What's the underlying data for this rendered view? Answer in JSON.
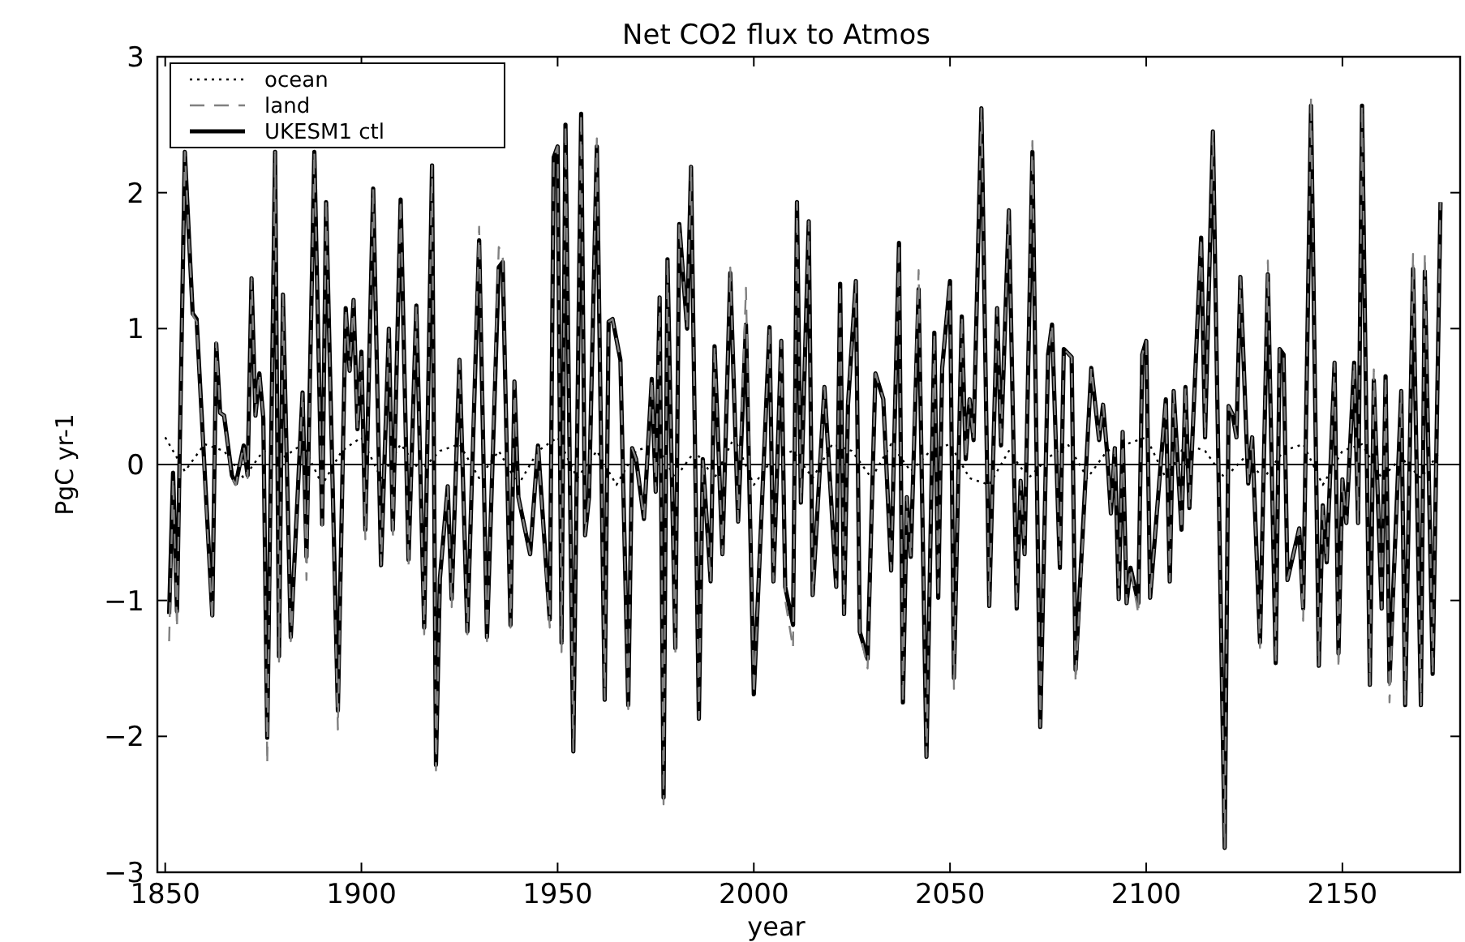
{
  "chart_data": {
    "type": "line",
    "title": "Net CO2 flux to Atmos",
    "xlabel": "year",
    "ylabel": "PgC yr-1",
    "xlim": [
      1848,
      2180
    ],
    "ylim": [
      -3,
      3
    ],
    "xticks": [
      1850,
      1900,
      1950,
      2000,
      2050,
      2100,
      2150
    ],
    "yticks": [
      -3,
      -2,
      -1,
      0,
      1,
      2,
      3
    ],
    "grid": false,
    "legend": "top left",
    "ref_lines": [
      {
        "axis": "y",
        "value": 0,
        "color": "#000000",
        "line_style": "solid"
      }
    ],
    "series": [
      {
        "name": "ocean",
        "color": "#000000",
        "line_style": "dotted",
        "x": [
          1850,
          1855,
          1860,
          1865,
          1870,
          1875,
          1880,
          1885,
          1890,
          1895,
          1900,
          1905,
          1910,
          1915,
          1920,
          1925,
          1930,
          1935,
          1940,
          1945,
          1950,
          1955,
          1960,
          1965,
          1970,
          1975,
          1980,
          1985,
          1990,
          1995,
          2000,
          2005,
          2010,
          2015,
          2020,
          2025,
          2030,
          2035,
          2040,
          2045,
          2050,
          2055,
          2060,
          2065,
          2070,
          2075,
          2080,
          2085,
          2090,
          2095,
          2100,
          2105,
          2110,
          2115,
          2120,
          2125,
          2130,
          2135,
          2140,
          2145,
          2150,
          2155,
          2160,
          2165,
          2170,
          2175
        ],
        "values": [
          0.2,
          -0.05,
          0.15,
          0.1,
          -0.1,
          0.1,
          0.05,
          0.15,
          -0.15,
          0.1,
          0.2,
          -0.1,
          0.15,
          -0.05,
          0.1,
          0.15,
          -0.1,
          0.1,
          -0.15,
          0.1,
          0.2,
          -0.1,
          0.1,
          -0.15,
          0.1,
          0.15,
          -0.1,
          0.1,
          -0.1,
          0.2,
          -0.15,
          0.05,
          0.1,
          -0.1,
          0.15,
          0.1,
          -0.1,
          0.15,
          -0.05,
          0.1,
          0.15,
          -0.1,
          -0.15,
          0.1,
          -0.1,
          0.05,
          0.15,
          -0.1,
          0.1,
          0.15,
          0.2,
          -0.1,
          0.15,
          0.1,
          -0.1,
          0.05,
          -0.1,
          0.1,
          0.15,
          -0.15,
          0.1,
          0.15,
          -0.1,
          0.05,
          -0.1,
          0.1
        ]
      },
      {
        "name": "land",
        "color": "#808080",
        "line_style": "dashed",
        "x": [
          1851,
          1852,
          1853,
          1855,
          1857,
          1858,
          1862,
          1863,
          1864,
          1865,
          1867,
          1868,
          1870,
          1871,
          1872,
          1873,
          1874,
          1875,
          1876,
          1878,
          1879,
          1880,
          1882,
          1885,
          1886,
          1888,
          1890,
          1891,
          1894,
          1896,
          1897,
          1898,
          1899,
          1900,
          1901,
          1903,
          1905,
          1907,
          1908,
          1910,
          1912,
          1914,
          1916,
          1918,
          1919,
          1920,
          1922,
          1923,
          1925,
          1927,
          1930,
          1932,
          1935,
          1936,
          1938,
          1939,
          1940,
          1943,
          1945,
          1948,
          1949,
          1950,
          1951,
          1952,
          1954,
          1956,
          1957,
          1958,
          1960,
          1962,
          1963,
          1964,
          1966,
          1968,
          1969,
          1970,
          1972,
          1974,
          1975,
          1976,
          1977,
          1978,
          1980,
          1981,
          1983,
          1984,
          1986,
          1987,
          1989,
          1990,
          1992,
          1994,
          1996,
          1998,
          2000,
          2004,
          2005,
          2007,
          2008,
          2010,
          2011,
          2012,
          2014,
          2015,
          2018,
          2021,
          2022,
          2023,
          2024,
          2026,
          2027,
          2029,
          2031,
          2033,
          2035,
          2037,
          2038,
          2039,
          2040,
          2042,
          2044,
          2046,
          2047,
          2048,
          2050,
          2051,
          2053,
          2054,
          2055,
          2056,
          2058,
          2060,
          2062,
          2063,
          2065,
          2067,
          2068,
          2069,
          2071,
          2073,
          2075,
          2076,
          2078,
          2079,
          2081,
          2082,
          2086,
          2088,
          2089,
          2090,
          2091,
          2092,
          2093,
          2094,
          2095,
          2096,
          2098,
          2099,
          2100,
          2101,
          2105,
          2106,
          2107,
          2109,
          2110,
          2111,
          2114,
          2115,
          2117,
          2120,
          2121,
          2122,
          2123,
          2124,
          2126,
          2127,
          2129,
          2131,
          2133,
          2134,
          2135,
          2136,
          2139,
          2140,
          2142,
          2144,
          2145,
          2146,
          2148,
          2149,
          2150,
          2151,
          2153,
          2154,
          2155,
          2157,
          2158,
          2160,
          2161,
          2162,
          2165,
          2166,
          2168,
          2170,
          2171,
          2173,
          2175
        ],
        "values": [
          -1.3,
          -0.1,
          -1.2,
          2.3,
          1.1,
          1.05,
          -1.15,
          0.9,
          0.38,
          0.36,
          -0.1,
          -0.15,
          0.14,
          -0.1,
          1.37,
          0.36,
          0.67,
          0.34,
          -2.2,
          2.3,
          -1.45,
          1.25,
          -1.3,
          0.53,
          -0.85,
          2.3,
          -0.45,
          1.95,
          -1.95,
          1.15,
          0.69,
          1.21,
          0.26,
          0.83,
          -0.55,
          2.03,
          -0.74,
          1.0,
          -0.55,
          1.95,
          -0.75,
          1.17,
          -1.25,
          2.2,
          -2.25,
          -0.84,
          -0.16,
          -1.05,
          0.77,
          -1.25,
          1.75,
          -1.3,
          1.6,
          1.55,
          -1.2,
          0.61,
          -0.24,
          -0.66,
          0.14,
          -1.2,
          2.26,
          2.34,
          -1.38,
          2.5,
          -2.11,
          2.58,
          -0.52,
          -0.24,
          2.4,
          -1.73,
          1.05,
          1.07,
          0.77,
          -1.8,
          0.12,
          0.04,
          -0.4,
          0.63,
          -0.2,
          1.23,
          -2.5,
          1.51,
          -1.4,
          1.77,
          1.0,
          2.19,
          -1.87,
          0.04,
          -0.86,
          0.87,
          -0.66,
          1.45,
          -0.42,
          1.3,
          -1.69,
          1.01,
          -0.86,
          0.91,
          -1.0,
          -1.35,
          1.93,
          -0.28,
          1.79,
          -0.96,
          0.57,
          -0.9,
          1.33,
          -1.1,
          0.44,
          1.35,
          -1.23,
          -1.5,
          0.67,
          0.48,
          -0.78,
          1.63,
          -1.75,
          -0.24,
          -0.68,
          1.43,
          -2.15,
          0.97,
          -0.98,
          0.71,
          1.35,
          -1.65,
          1.09,
          0.04,
          0.48,
          0.18,
          2.62,
          -1.04,
          1.15,
          0.14,
          1.87,
          -1.06,
          -0.12,
          -0.66,
          2.38,
          -1.93,
          0.81,
          1.03,
          -0.76,
          0.85,
          0.79,
          -1.6,
          0.71,
          0.18,
          0.44,
          0.1,
          -0.36,
          0.12,
          -0.99,
          0.24,
          -1.02,
          -0.76,
          -1.1,
          0.81,
          0.91,
          -0.98,
          0.48,
          -0.86,
          0.54,
          -0.48,
          0.57,
          -0.32,
          1.67,
          0.2,
          2.45,
          -2.82,
          0.43,
          0.37,
          0.2,
          1.38,
          -0.14,
          0.2,
          -1.35,
          1.5,
          -1.46,
          0.85,
          0.81,
          -0.85,
          -0.47,
          -1.15,
          2.7,
          -1.48,
          -0.3,
          -0.72,
          0.75,
          -1.5,
          -0.11,
          -0.43,
          0.75,
          -0.43,
          2.64,
          -1.62,
          0.7,
          -1.06,
          0.65,
          -1.75,
          0.54,
          -1.77,
          1.55,
          -1.77,
          1.55,
          -1.54,
          1.93
        ]
      },
      {
        "name": "UKESM1 ctl",
        "color": "#000000",
        "line_style": "solid",
        "x": [
          1851,
          1852,
          1853,
          1855,
          1857,
          1858,
          1862,
          1863,
          1864,
          1865,
          1867,
          1868,
          1870,
          1871,
          1872,
          1873,
          1874,
          1875,
          1876,
          1878,
          1879,
          1880,
          1882,
          1885,
          1886,
          1888,
          1890,
          1891,
          1894,
          1896,
          1897,
          1898,
          1899,
          1900,
          1901,
          1903,
          1905,
          1907,
          1908,
          1910,
          1912,
          1914,
          1916,
          1918,
          1919,
          1920,
          1922,
          1923,
          1925,
          1927,
          1930,
          1932,
          1935,
          1936,
          1938,
          1939,
          1940,
          1943,
          1945,
          1948,
          1949,
          1950,
          1951,
          1952,
          1954,
          1956,
          1957,
          1958,
          1960,
          1962,
          1963,
          1964,
          1966,
          1968,
          1969,
          1970,
          1972,
          1974,
          1975,
          1976,
          1977,
          1978,
          1980,
          1981,
          1983,
          1984,
          1986,
          1987,
          1989,
          1990,
          1992,
          1994,
          1996,
          1998,
          2000,
          2004,
          2005,
          2007,
          2008,
          2010,
          2011,
          2012,
          2014,
          2015,
          2018,
          2021,
          2022,
          2023,
          2024,
          2026,
          2027,
          2029,
          2031,
          2033,
          2035,
          2037,
          2038,
          2039,
          2040,
          2042,
          2044,
          2046,
          2047,
          2048,
          2050,
          2051,
          2053,
          2054,
          2055,
          2056,
          2058,
          2060,
          2062,
          2063,
          2065,
          2067,
          2068,
          2069,
          2071,
          2073,
          2075,
          2076,
          2078,
          2079,
          2081,
          2082,
          2086,
          2088,
          2089,
          2090,
          2091,
          2092,
          2093,
          2094,
          2095,
          2096,
          2098,
          2099,
          2100,
          2101,
          2105,
          2106,
          2107,
          2109,
          2110,
          2111,
          2114,
          2115,
          2117,
          2120,
          2121,
          2122,
          2123,
          2124,
          2126,
          2127,
          2129,
          2131,
          2133,
          2134,
          2135,
          2136,
          2139,
          2140,
          2142,
          2144,
          2145,
          2146,
          2148,
          2149,
          2150,
          2151,
          2153,
          2154,
          2155,
          2157,
          2158,
          2160,
          2161,
          2162,
          2165,
          2166,
          2168,
          2170,
          2171,
          2173,
          2175
        ],
        "values": [
          -1.1,
          -0.06,
          -1.08,
          2.3,
          1.11,
          1.07,
          -1.11,
          0.89,
          0.38,
          0.36,
          -0.08,
          -0.14,
          0.14,
          -0.08,
          1.37,
          0.36,
          0.67,
          0.34,
          -2.01,
          2.3,
          -1.41,
          1.25,
          -1.27,
          0.53,
          -0.68,
          2.3,
          -0.44,
          1.93,
          -1.81,
          1.15,
          0.69,
          1.21,
          0.26,
          0.83,
          -0.48,
          2.03,
          -0.74,
          1.0,
          -0.48,
          1.95,
          -0.7,
          1.17,
          -1.2,
          2.2,
          -2.21,
          -0.84,
          -0.16,
          -0.99,
          0.77,
          -1.23,
          1.65,
          -1.27,
          1.45,
          1.49,
          -1.18,
          0.61,
          -0.24,
          -0.66,
          0.14,
          -1.14,
          2.26,
          2.34,
          -1.31,
          2.5,
          -2.11,
          2.58,
          -0.52,
          -0.24,
          2.34,
          -1.73,
          1.05,
          1.07,
          0.77,
          -1.77,
          0.12,
          0.04,
          -0.4,
          0.63,
          -0.2,
          1.23,
          -2.45,
          1.51,
          -1.35,
          1.77,
          1.0,
          2.19,
          -1.87,
          0.04,
          -0.86,
          0.87,
          -0.66,
          1.41,
          -0.42,
          1.03,
          -1.69,
          1.01,
          -0.86,
          0.91,
          -0.9,
          -1.18,
          1.93,
          -0.28,
          1.79,
          -0.96,
          0.57,
          -0.9,
          1.33,
          -1.1,
          0.44,
          1.35,
          -1.23,
          -1.43,
          0.67,
          0.48,
          -0.78,
          1.63,
          -1.75,
          -0.24,
          -0.68,
          1.29,
          -2.15,
          0.97,
          -0.98,
          0.71,
          1.35,
          -1.57,
          1.09,
          0.04,
          0.48,
          0.18,
          2.62,
          -1.04,
          1.15,
          0.14,
          1.87,
          -1.06,
          -0.12,
          -0.66,
          2.3,
          -1.93,
          0.81,
          1.03,
          -0.76,
          0.85,
          0.79,
          -1.51,
          0.71,
          0.18,
          0.44,
          0.1,
          -0.36,
          0.12,
          -0.99,
          0.24,
          -1.02,
          -0.76,
          -1.02,
          0.81,
          0.91,
          -0.98,
          0.48,
          -0.86,
          0.54,
          -0.48,
          0.57,
          -0.32,
          1.67,
          0.2,
          2.45,
          -2.82,
          0.43,
          0.37,
          0.2,
          1.38,
          -0.14,
          0.2,
          -1.31,
          1.4,
          -1.46,
          0.85,
          0.81,
          -0.85,
          -0.47,
          -1.06,
          2.64,
          -1.48,
          -0.3,
          -0.72,
          0.75,
          -1.39,
          -0.11,
          -0.43,
          0.75,
          -0.43,
          2.64,
          -1.62,
          0.62,
          -1.06,
          0.65,
          -1.6,
          0.54,
          -1.77,
          1.44,
          -1.77,
          1.42,
          -1.54,
          1.93
        ]
      }
    ]
  }
}
